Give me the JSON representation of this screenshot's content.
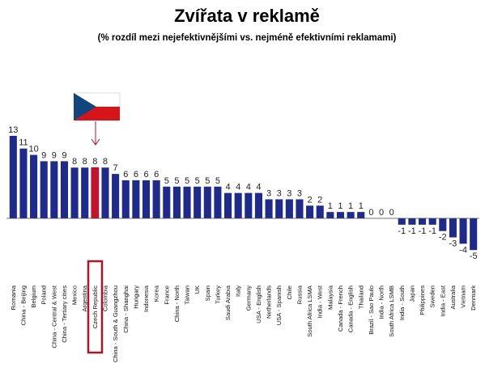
{
  "chart_data": {
    "type": "bar",
    "title": "Zvířata v reklamě",
    "subtitle": "(% rozdíl mezi nejefektivnějšími vs. nejméně efektivními reklamami)",
    "xlabel": "",
    "ylabel": "",
    "ylim": [
      -5,
      13
    ],
    "grid": false,
    "legend": "none",
    "categories": [
      "Romania",
      "China - Beijing",
      "Belgium",
      "Poland",
      "China - Central & West",
      "China - Tertiary cities",
      "Mexico",
      "Argentina",
      "Czech Republic",
      "Colombia",
      "China - South & Guangzhou",
      "China - Shanghai",
      "Hungary",
      "Indonesia",
      "Korea",
      "France",
      "China - North",
      "Taiwan",
      "UK",
      "Spain",
      "Turkey",
      "Saudi Arabia",
      "Italy",
      "Germany",
      "USA - English",
      "Netherlands",
      "USA - Spanish",
      "Chile",
      "Russia",
      "South Africa LSMA",
      "India - West",
      "Malaysia",
      "Canada - French",
      "Canada - English",
      "Thailand",
      "Brazil - Sao Paulo",
      "India - North",
      "South Africa LSMB",
      "India - South",
      "Japan",
      "Philippines",
      "Sweden",
      "India - East",
      "Australia",
      "Vietnam",
      "Denmark"
    ],
    "values": [
      13,
      11,
      10,
      9,
      9,
      9,
      8,
      8,
      8,
      8,
      7,
      6,
      6,
      6,
      6,
      5,
      5,
      5,
      5,
      5,
      5,
      4,
      4,
      4,
      4,
      3,
      3,
      3,
      3,
      2,
      2,
      1,
      1,
      1,
      1,
      0,
      0,
      0,
      -1,
      -1,
      -1,
      -1,
      -2,
      -3,
      -4,
      -5
    ],
    "value_labels": [
      "13",
      "11",
      "10",
      "9",
      "9",
      "9",
      "8",
      "8",
      "8",
      "8",
      "7",
      "6",
      "6",
      "6",
      "6",
      "5",
      "5",
      "5",
      "5",
      "5",
      "5",
      "4",
      "4",
      "4",
      "4",
      "3",
      "3",
      "3",
      "3",
      "2",
      "2",
      "1",
      "1",
      "1",
      "1",
      "0",
      "0",
      "0",
      "-1",
      "-1",
      "-1",
      "-1",
      "-2",
      "-3",
      "-4",
      "-5"
    ],
    "highlight_category": "Czech Republic",
    "colors": {
      "bar": "#1F2B8C",
      "highlight": "#C8102E",
      "flag_white": "#FFFFFF",
      "flag_red": "#D7141A",
      "flag_blue": "#11457E",
      "callout": "#B11226"
    }
  }
}
